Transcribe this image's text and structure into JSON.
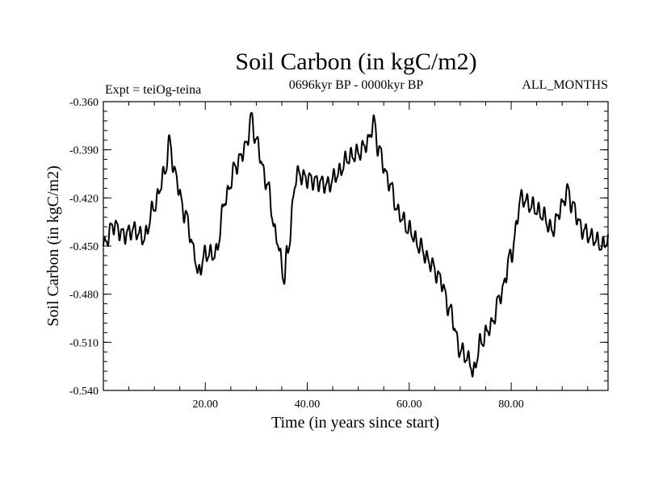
{
  "chart_data": {
    "type": "line",
    "title": "Soil Carbon (in kgC/m2)",
    "left_note": "Expt = teiOg-teina",
    "center_note": "0696kyr BP - 0000kyr BP",
    "right_note": "ALL_MONTHS",
    "xlabel": "Time (in years since start)",
    "ylabel": "Soil Carbon (in kgC/m2)",
    "xlim": [
      0,
      99
    ],
    "ylim": [
      -0.54,
      -0.36
    ],
    "x_ticks": [
      20,
      40,
      60,
      80
    ],
    "x_tick_labels": [
      "20.00",
      "40.00",
      "60.00",
      "80.00"
    ],
    "y_ticks": [
      -0.36,
      -0.39,
      -0.42,
      -0.45,
      -0.48,
      -0.51,
      -0.54
    ],
    "y_tick_labels": [
      "-0.360",
      "-0.390",
      "-0.420",
      "-0.450",
      "-0.480",
      "-0.510",
      "-0.540"
    ],
    "grid": false,
    "series": [
      {
        "name": "Soil Carbon",
        "x": [
          0,
          2,
          4,
          6,
          8,
          10,
          12,
          13,
          14,
          16,
          18,
          18.5,
          20,
          22,
          24,
          26,
          28,
          29,
          30,
          32,
          34,
          35.5,
          36,
          38,
          40,
          42,
          44,
          46,
          48,
          50,
          52,
          53,
          54,
          56,
          58,
          60,
          62,
          64,
          66,
          68,
          70,
          72,
          72.5,
          74,
          76,
          78,
          80,
          82,
          84,
          86,
          88,
          90,
          91,
          92,
          94,
          96,
          98,
          99
        ],
        "y": [
          -0.45,
          -0.437,
          -0.443,
          -0.44,
          -0.445,
          -0.425,
          -0.405,
          -0.385,
          -0.405,
          -0.43,
          -0.455,
          -0.468,
          -0.455,
          -0.455,
          -0.42,
          -0.4,
          -0.388,
          -0.37,
          -0.385,
          -0.41,
          -0.445,
          -0.47,
          -0.455,
          -0.405,
          -0.408,
          -0.41,
          -0.412,
          -0.405,
          -0.395,
          -0.392,
          -0.385,
          -0.372,
          -0.39,
          -0.41,
          -0.43,
          -0.44,
          -0.45,
          -0.46,
          -0.47,
          -0.49,
          -0.515,
          -0.522,
          -0.53,
          -0.51,
          -0.5,
          -0.48,
          -0.455,
          -0.42,
          -0.425,
          -0.43,
          -0.44,
          -0.425,
          -0.415,
          -0.425,
          -0.44,
          -0.445,
          -0.45,
          -0.445
        ]
      }
    ]
  }
}
